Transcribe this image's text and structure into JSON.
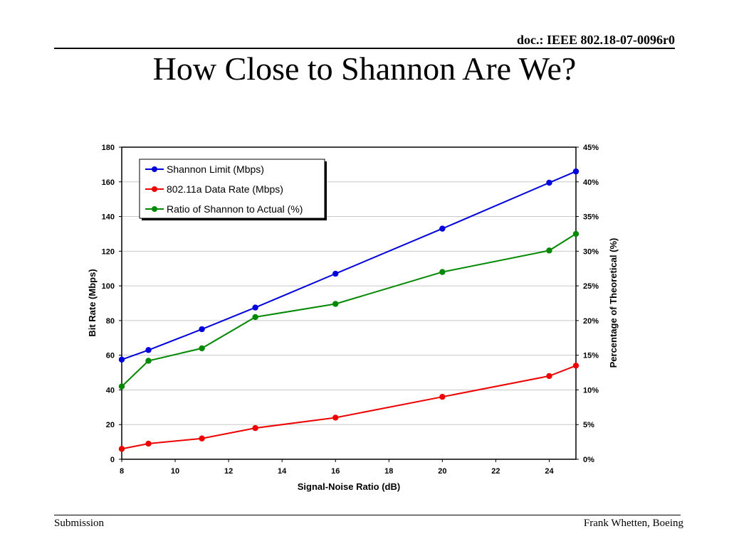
{
  "header": {
    "doc_id": "doc.: IEEE 802.18-07-0096r0"
  },
  "slide": {
    "title": "How Close to Shannon Are We?"
  },
  "footer": {
    "left": "Submission",
    "right": "Frank Whetten, Boeing"
  },
  "chart_data": {
    "type": "line",
    "xlabel": "Signal-Noise Ratio (dB)",
    "ylabel": "Bit Rate (Mbps)",
    "y2label": "Percentage of Theoretical (%)",
    "xlim": [
      8,
      25
    ],
    "ylim": [
      0,
      180
    ],
    "y2lim": [
      0,
      45
    ],
    "x_ticks": [
      8,
      10,
      12,
      14,
      16,
      18,
      20,
      22,
      24
    ],
    "x_tick_labels": [
      "8",
      "10",
      "12",
      "14",
      "16",
      "18",
      "20",
      "22",
      "24"
    ],
    "y_ticks": [
      0,
      20,
      40,
      60,
      80,
      100,
      120,
      140,
      160,
      180
    ],
    "y_tick_labels": [
      "0",
      "20",
      "40",
      "60",
      "80",
      "100",
      "120",
      "140",
      "160",
      "180"
    ],
    "y2_ticks": [
      0,
      5,
      10,
      15,
      20,
      25,
      30,
      35,
      40,
      45
    ],
    "y2_tick_labels": [
      "0%",
      "5%",
      "10%",
      "15%",
      "20%",
      "25%",
      "30%",
      "35%",
      "40%",
      "45%"
    ],
    "grid": true,
    "legend_position": "top-left",
    "x": [
      8,
      9,
      11,
      13,
      16,
      20,
      24,
      25
    ],
    "series": [
      {
        "name": "Shannon Limit (Mbps)",
        "axis": "left",
        "color": "#0000dd",
        "values": [
          57.5,
          63,
          75,
          87.5,
          107,
          133,
          159.5,
          166
        ]
      },
      {
        "name": "802.11a Data Rate (Mbps)",
        "axis": "left",
        "color": "#ee0000",
        "values": [
          6,
          9,
          12,
          18,
          24,
          36,
          48,
          54
        ]
      },
      {
        "name": "Ratio of Shannon to Actual (%)",
        "axis": "right",
        "color": "#008800",
        "values": [
          10.5,
          14.2,
          16,
          20.5,
          22.4,
          27,
          30.1,
          32.5
        ]
      }
    ]
  }
}
